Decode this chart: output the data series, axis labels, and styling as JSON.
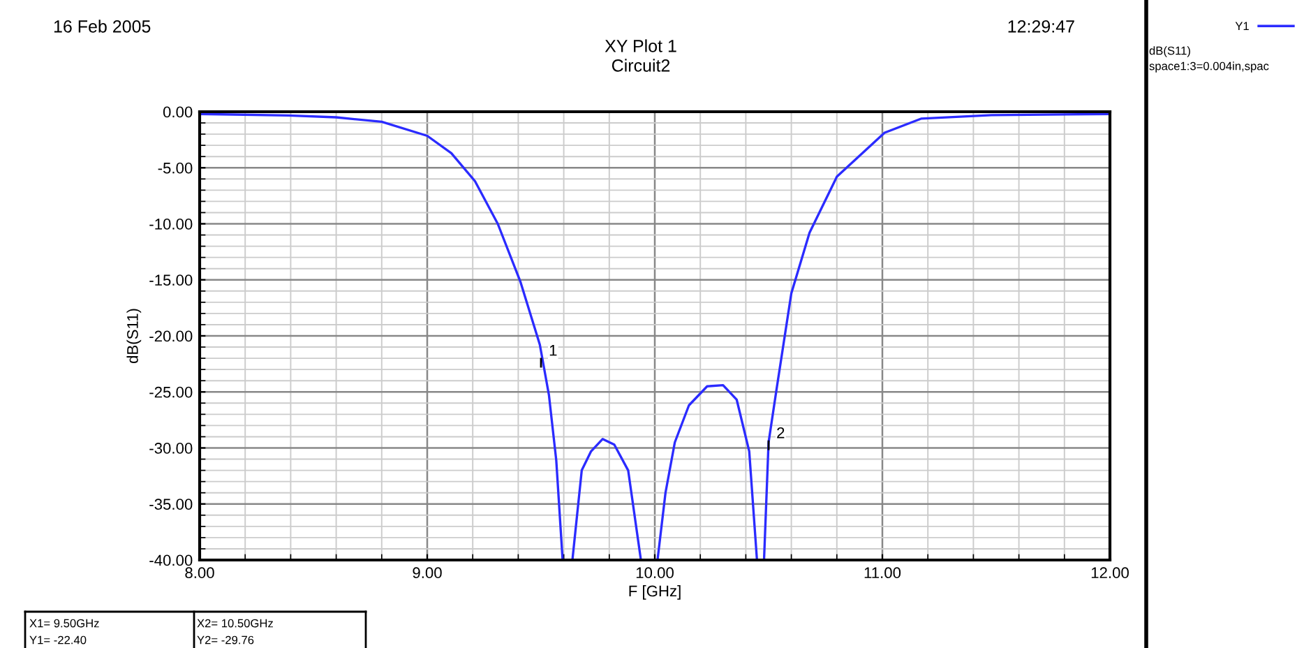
{
  "chart_data": {
    "type": "line",
    "title": "XY Plot 1",
    "subtitle": "Circuit2",
    "xlabel": "F [GHz]",
    "ylabel": "dB(S11)",
    "annotations": [
      "16 Feb 2005",
      "12:29:47",
      "dB(S11)",
      "space1:3=0.004in,spac",
      "X1= 9.50GHz",
      "Y1= -22.40",
      "X2= 10.50GHz",
      "Y2= -29.76",
      {
        "text": "1",
        "x": 9.5,
        "y": -22.4
      },
      {
        "text": "2",
        "x": 10.5,
        "y": -29.76
      }
    ],
    "series": [
      {
        "name": "Y1",
        "color": "#2b2bff",
        "x": [
          8.0,
          8.39,
          8.6,
          8.8,
          9.0,
          9.106,
          9.21,
          9.31,
          9.41,
          9.495,
          9.535,
          9.567,
          9.595,
          9.638,
          9.679,
          9.72,
          9.771,
          9.822,
          9.883,
          9.939,
          10.012,
          10.047,
          10.088,
          10.15,
          10.23,
          10.3,
          10.36,
          10.415,
          10.449,
          10.48,
          10.5,
          10.537,
          10.6,
          10.68,
          10.8,
          11.01,
          11.17,
          11.48,
          12.0
        ],
        "values": [
          -0.2,
          -0.33,
          -0.5,
          -0.9,
          -2.15,
          -3.7,
          -6.2,
          -10.0,
          -15.2,
          -20.8,
          -25.3,
          -31.1,
          -40,
          -40,
          -32.0,
          -30.3,
          -29.2,
          -29.7,
          -32.0,
          -40,
          -40,
          -34.0,
          -29.5,
          -26.2,
          -24.5,
          -24.4,
          -25.7,
          -30.3,
          -40,
          -40,
          -29.5,
          -24.5,
          -16.2,
          -10.8,
          -5.8,
          -1.87,
          -0.62,
          -0.3,
          -0.2
        ]
      }
    ],
    "xlim": [
      8.0,
      12.0
    ],
    "ylim": [
      -40.0,
      0.0
    ],
    "xticks": [
      {
        "value": 8,
        "label": "8.00"
      },
      {
        "value": 9,
        "label": "9.00"
      },
      {
        "value": 10,
        "label": "10.00"
      },
      {
        "value": 11,
        "label": "11.00"
      },
      {
        "value": 12,
        "label": "12.00"
      }
    ],
    "yticks": [
      {
        "value": 0,
        "label": "0.00"
      },
      {
        "value": -5,
        "label": "-5.00"
      },
      {
        "value": -10,
        "label": "-10.00"
      },
      {
        "value": -15,
        "label": "-15.00"
      },
      {
        "value": -20,
        "label": "-20.00"
      },
      {
        "value": -25,
        "label": "-25.00"
      },
      {
        "value": -30,
        "label": "-30.00"
      },
      {
        "value": -35,
        "label": "-35.00"
      },
      {
        "value": -40,
        "label": "-40.00"
      }
    ],
    "grid": true,
    "legend": "right",
    "marker": "none",
    "line_style": "solid"
  }
}
